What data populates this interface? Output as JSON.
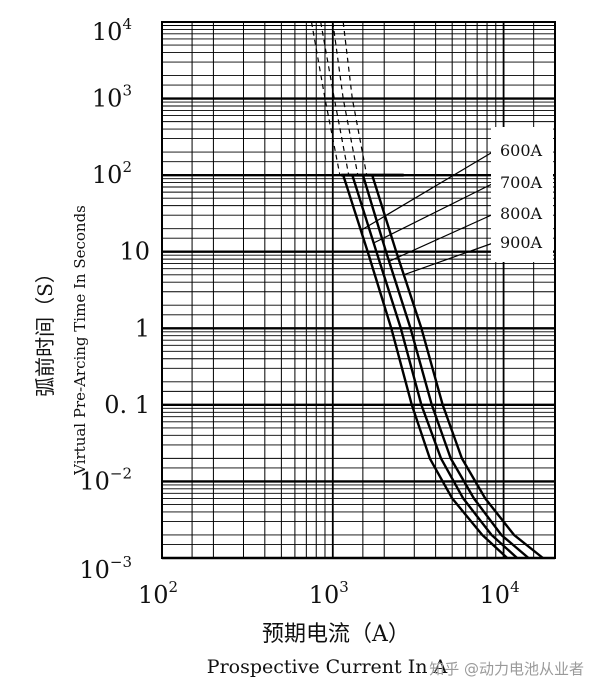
{
  "chart_data": {
    "type": "line",
    "x_scale": "log",
    "y_scale": "log",
    "xlim": [
      100,
      20000
    ],
    "ylim": [
      0.001,
      10000
    ],
    "grid": true,
    "legend_placement": "right-top",
    "x_ticks": [
      {
        "value": 100,
        "base": "10",
        "exp": "2"
      },
      {
        "value": 1000,
        "base": "10",
        "exp": "3"
      },
      {
        "value": 10000,
        "base": "10",
        "exp": "4"
      }
    ],
    "y_ticks": [
      {
        "value": 10000,
        "base": "10",
        "exp": "4"
      },
      {
        "value": 1000,
        "base": "10",
        "exp": "3"
      },
      {
        "value": 100,
        "base": "10",
        "exp": "2"
      },
      {
        "value": 10,
        "base": "10",
        "exp": ""
      },
      {
        "value": 1,
        "base": "1",
        "exp": ""
      },
      {
        "value": 0.1,
        "base": "0. 1",
        "exp": ""
      },
      {
        "value": 0.01,
        "base": "10",
        "exp": "−2"
      },
      {
        "value": 0.001,
        "base": "10",
        "exp": "−3"
      }
    ],
    "ylabel_cn": "弧前时间（S）",
    "ylabel_en": "Virtual Pre-Arcing Time In Seconds",
    "xlabel_cn": "预期电流（A）",
    "xlabel_en": "Prospective Current In A",
    "series": [
      {
        "name": "600A",
        "dashed": [
          [
            750,
            10000
          ],
          [
            900,
            1000
          ],
          [
            1100,
            100
          ]
        ],
        "solid": [
          [
            1150,
            100
          ],
          [
            1600,
            10
          ],
          [
            2200,
            1
          ],
          [
            2900,
            0.1
          ],
          [
            3700,
            0.02
          ],
          [
            5000,
            0.006
          ],
          [
            7500,
            0.002
          ],
          [
            10500,
            0.001
          ]
        ]
      },
      {
        "name": "700A",
        "dashed": [
          [
            850,
            10000
          ],
          [
            1020,
            1000
          ],
          [
            1240,
            100
          ]
        ],
        "solid": [
          [
            1300,
            100
          ],
          [
            1800,
            10
          ],
          [
            2500,
            1
          ],
          [
            3300,
            0.1
          ],
          [
            4300,
            0.02
          ],
          [
            5800,
            0.006
          ],
          [
            8500,
            0.002
          ],
          [
            12000,
            0.001
          ]
        ]
      },
      {
        "name": "800A",
        "dashed": [
          [
            1000,
            10000
          ],
          [
            1150,
            1000
          ],
          [
            1400,
            100
          ]
        ],
        "solid": [
          [
            1500,
            100
          ],
          [
            2050,
            10
          ],
          [
            2850,
            1
          ],
          [
            3800,
            0.1
          ],
          [
            4900,
            0.02
          ],
          [
            6700,
            0.006
          ],
          [
            9700,
            0.002
          ],
          [
            14000,
            0.001
          ]
        ]
      },
      {
        "name": "900A",
        "dashed": [
          [
            1150,
            10000
          ],
          [
            1300,
            1000
          ],
          [
            1580,
            100
          ]
        ],
        "solid": [
          [
            1700,
            100
          ],
          [
            2350,
            10
          ],
          [
            3300,
            1
          ],
          [
            4400,
            0.1
          ],
          [
            5700,
            0.02
          ],
          [
            7800,
            0.006
          ],
          [
            11500,
            0.002
          ],
          [
            17000,
            0.001
          ]
        ]
      }
    ]
  },
  "colors": {
    "line": "#000000",
    "grid": "#000000",
    "background": "#ffffff",
    "watermark": "#9a9a9a"
  },
  "watermark": "知乎 @动力电池从业者"
}
